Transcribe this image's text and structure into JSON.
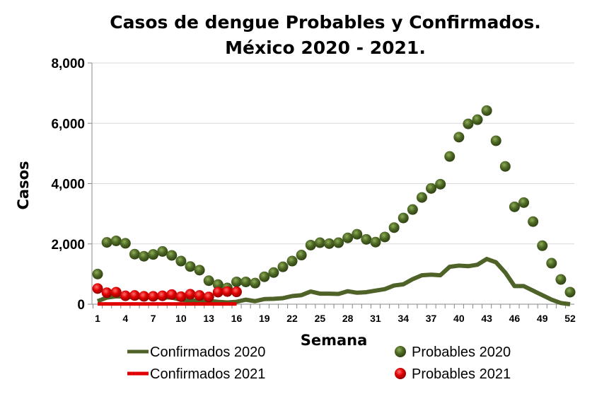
{
  "chart_data": {
    "type": "line",
    "title": [
      "Casos de dengue Probables y Confirmados.",
      "México 2020 - 2021."
    ],
    "xlabel": "Semana",
    "ylabel": "Casos",
    "ylim": [
      0,
      8000
    ],
    "yticks": [
      "0",
      "2,000",
      "4,000",
      "6,000",
      "8,000"
    ],
    "xlim": [
      1,
      52
    ],
    "xticks": [
      "1",
      "4",
      "7",
      "10",
      "13",
      "16",
      "19",
      "22",
      "25",
      "28",
      "31",
      "34",
      "37",
      "40",
      "43",
      "46",
      "49",
      "52"
    ],
    "grid": true,
    "legend": "bottom",
    "series": [
      {
        "name": "Confirmados 2020",
        "kind": "line",
        "color": "#4f6228",
        "x_start": 1,
        "values": [
          100,
          220,
          260,
          250,
          230,
          230,
          230,
          230,
          220,
          150,
          120,
          120,
          110,
          80,
          60,
          80,
          150,
          100,
          170,
          180,
          200,
          270,
          300,
          420,
          350,
          350,
          340,
          430,
          380,
          400,
          450,
          500,
          620,
          660,
          830,
          960,
          980,
          960,
          1240,
          1280,
          1260,
          1310,
          1500,
          1390,
          1050,
          600,
          600,
          450,
          300,
          150,
          40,
          0
        ]
      },
      {
        "name": "Probables 2020",
        "kind": "scatter",
        "color": "#4f6228",
        "x_start": 1,
        "values": [
          1000,
          2050,
          2100,
          2020,
          1660,
          1590,
          1650,
          1750,
          1620,
          1430,
          1250,
          1130,
          780,
          650,
          540,
          740,
          740,
          700,
          910,
          1050,
          1240,
          1430,
          1630,
          1960,
          2040,
          2010,
          2040,
          2200,
          2320,
          2150,
          2060,
          2230,
          2540,
          2860,
          3140,
          3540,
          3840,
          3980,
          4900,
          5540,
          5980,
          6120,
          6420,
          5420,
          4570,
          3230,
          3370,
          2740,
          1940,
          1360,
          820,
          400
        ]
      },
      {
        "name": "Confirmados 2021",
        "kind": "line",
        "color": "#e00000",
        "x_start": 1,
        "values": [
          10,
          10,
          10,
          10,
          10,
          10,
          10,
          10,
          10,
          10,
          10,
          10,
          10,
          10,
          10,
          10
        ]
      },
      {
        "name": "Probables 2021",
        "kind": "scatter",
        "color": "#e00000",
        "x_start": 1,
        "values": [
          520,
          380,
          400,
          280,
          290,
          260,
          260,
          280,
          320,
          250,
          330,
          290,
          240,
          400,
          420,
          410
        ]
      }
    ]
  }
}
